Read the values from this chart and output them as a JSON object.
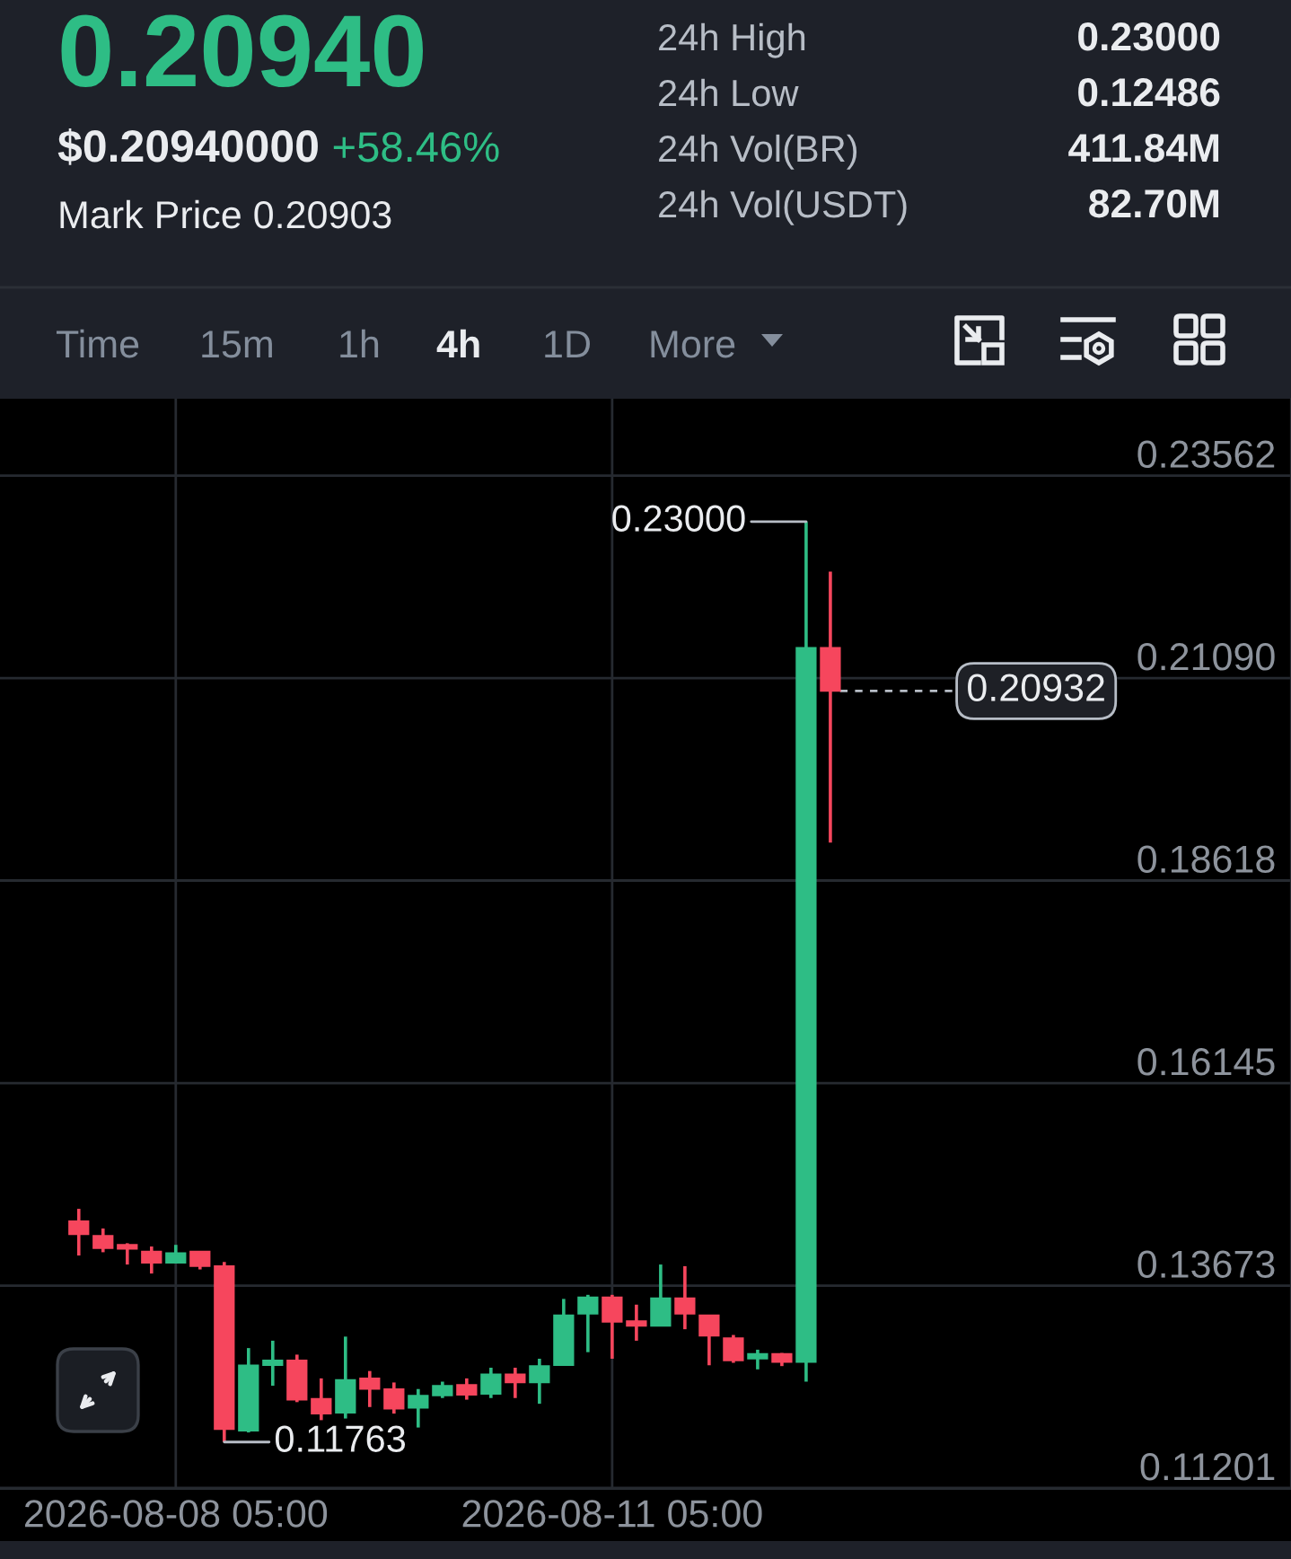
{
  "chart_data": {
    "type": "candlestick",
    "annotations": [
      "0.20940",
      "$0.20940000",
      "+58.46%",
      "Mark Price 0.20903",
      "24h High",
      "0.23000",
      "24h Low",
      "0.12486",
      "24h Vol(BR)",
      "411.84M",
      "24h Vol(USDT)",
      "82.70M",
      "Time",
      "15m",
      "1h",
      "4h",
      "1D",
      "More",
      {
        "text": "0.23000",
        "x": "2026-08-12T13:00",
        "y": 0.23
      },
      {
        "text": "0.11763",
        "x": "2026-08-08T13:00",
        "y": 0.11763
      }
    ],
    "x": [
      "2026-08-07T13:00",
      "2026-08-07T17:00",
      "2026-08-07T21:00",
      "2026-08-08T01:00",
      "2026-08-08T05:00",
      "2026-08-08T09:00",
      "2026-08-08T13:00",
      "2026-08-08T17:00",
      "2026-08-08T21:00",
      "2026-08-09T01:00",
      "2026-08-09T05:00",
      "2026-08-09T09:00",
      "2026-08-09T13:00",
      "2026-08-09T17:00",
      "2026-08-09T21:00",
      "2026-08-10T01:00",
      "2026-08-10T05:00",
      "2026-08-10T09:00",
      "2026-08-10T13:00",
      "2026-08-10T17:00",
      "2026-08-10T21:00",
      "2026-08-11T01:00",
      "2026-08-11T05:00",
      "2026-08-11T09:00",
      "2026-08-11T13:00",
      "2026-08-11T17:00",
      "2026-08-11T21:00",
      "2026-08-12T01:00",
      "2026-08-12T05:00",
      "2026-08-12T09:00",
      "2026-08-12T13:00",
      "2026-08-12T17:00"
    ],
    "ohlc": [
      [
        0.1446,
        0.1461,
        0.1404,
        0.143
      ],
      [
        0.1428,
        0.1437,
        0.1408,
        0.1413
      ],
      [
        0.1417,
        0.1419,
        0.1393,
        0.1412
      ],
      [
        0.1409,
        0.1415,
        0.1382,
        0.1395
      ],
      [
        0.1395,
        0.1417,
        0.1395,
        0.1407
      ],
      [
        0.1409,
        0.1409,
        0.1387,
        0.1391
      ],
      [
        0.1391,
        0.1396,
        0.11763,
        0.1192
      ],
      [
        0.119,
        0.1291,
        0.1188,
        0.127
      ],
      [
        0.127,
        0.13,
        0.1245,
        0.1276
      ],
      [
        0.1276,
        0.1283,
        0.1225,
        0.1228
      ],
      [
        0.1229,
        0.1254,
        0.1203,
        0.1211
      ],
      [
        0.1212,
        0.1305,
        0.1205,
        0.1252
      ],
      [
        0.1254,
        0.1263,
        0.1219,
        0.1241
      ],
      [
        0.1241,
        0.1249,
        0.1211,
        0.1217
      ],
      [
        0.1218,
        0.1241,
        0.1194,
        0.1233
      ],
      [
        0.1233,
        0.125,
        0.123,
        0.1245
      ],
      [
        0.1246,
        0.1254,
        0.1228,
        0.1234
      ],
      [
        0.1235,
        0.1267,
        0.123,
        0.1259
      ],
      [
        0.1259,
        0.1267,
        0.123,
        0.1249
      ],
      [
        0.1249,
        0.1278,
        0.1223,
        0.1269
      ],
      [
        0.127,
        0.1351,
        0.127,
        0.1331
      ],
      [
        0.1333,
        0.1356,
        0.1286,
        0.1353
      ],
      [
        0.1353,
        0.1356,
        0.1278,
        0.1323
      ],
      [
        0.1324,
        0.1344,
        0.13,
        0.1318
      ],
      [
        0.1318,
        0.1393,
        0.1318,
        0.1352
      ],
      [
        0.1352,
        0.1391,
        0.1314,
        0.1333
      ],
      [
        0.1331,
        0.1331,
        0.127,
        0.1306
      ],
      [
        0.1303,
        0.1307,
        0.1273,
        0.1276
      ],
      [
        0.1278,
        0.1289,
        0.1265,
        0.1284
      ],
      [
        0.1284,
        0.1285,
        0.1269,
        0.1274
      ],
      [
        0.1274,
        0.23,
        0.125,
        0.2146
      ],
      [
        0.2146,
        0.2239,
        0.1908,
        0.20932
      ]
    ],
    "colors": [
      "#f6465d",
      "#f6465d",
      "#f6465d",
      "#f6465d",
      "#2ebd85",
      "#f6465d",
      "#f6465d",
      "#2ebd85",
      "#2ebd85",
      "#f6465d",
      "#f6465d",
      "#2ebd85",
      "#f6465d",
      "#f6465d",
      "#2ebd85",
      "#2ebd85",
      "#f6465d",
      "#2ebd85",
      "#f6465d",
      "#2ebd85",
      "#2ebd85",
      "#2ebd85",
      "#f6465d",
      "#f6465d",
      "#2ebd85",
      "#f6465d",
      "#f6465d",
      "#f6465d",
      "#2ebd85",
      "#f6465d",
      "#2ebd85",
      "#f6465d"
    ],
    "xlim": [
      "2026-08-07T00:00",
      "2026-08-15T21:00"
    ],
    "xticks": [
      {
        "value": "2026-08-08T05:00",
        "label": "2026-08-08 05:00"
      },
      {
        "value": "2026-08-11T05:00",
        "label": "2026-08-11 05:00"
      }
    ],
    "ylim": [
      0.1119,
      0.245
    ],
    "yticks": [
      0.11201,
      0.13673,
      0.16145,
      0.18618,
      {
        "value": 0.2109,
        "label": "0.21090"
      },
      0.23562
    ],
    "grid": true,
    "ref_lines": [
      {
        "axis": "y",
        "value": 0.20932,
        "label": "0.20932",
        "color": "#b7bdc6",
        "line_style": "dashed"
      }
    ]
  }
}
